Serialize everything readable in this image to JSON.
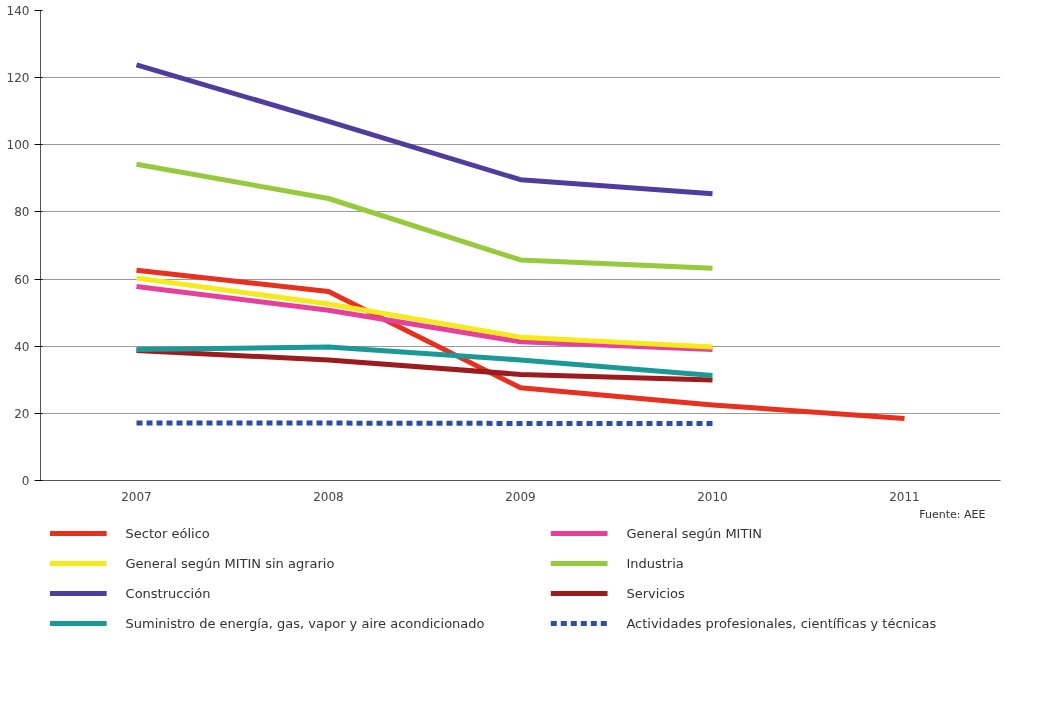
{
  "chart_data": {
    "type": "line",
    "categories": [
      "2007",
      "2008",
      "2009",
      "2010",
      "2011"
    ],
    "ylim": [
      0,
      140
    ],
    "yticks": [
      0,
      20,
      40,
      60,
      80,
      100,
      120,
      140
    ],
    "grid": "y",
    "legend": "bottom",
    "line_style": "solid",
    "annotations": [
      "Fuente: AEE"
    ],
    "series": [
      {
        "name": "Sector eólico",
        "color": "#e8301f",
        "values": [
          62.6,
          56.3,
          27.6,
          22.5,
          18.5
        ]
      },
      {
        "name": "General según MITIN",
        "color": "#e8409a",
        "values": [
          57.8,
          50.7,
          41.3,
          39.0,
          null
        ]
      },
      {
        "name": "General según MITIN sin agrario",
        "color": "#f5ea1c",
        "values": [
          60.3,
          52.6,
          42.7,
          39.8,
          null
        ]
      },
      {
        "name": "Industria",
        "color": "#97c93c",
        "values": [
          94.2,
          84.0,
          65.7,
          63.2,
          null
        ]
      },
      {
        "name": "Construcción",
        "color": "#4f3d9e",
        "values": [
          123.8,
          107.0,
          89.6,
          85.4,
          null
        ]
      },
      {
        "name": "Servicios",
        "color": "#9b1b1e",
        "values": [
          38.7,
          35.9,
          31.6,
          29.9,
          null
        ]
      },
      {
        "name": "Suministro de energía, gas, vapor y aire acondicionado",
        "color": "#1a9a96",
        "values": [
          39.0,
          39.8,
          35.9,
          31.3,
          null
        ]
      },
      {
        "name": "Actividades profesionales, científicas y técnicas",
        "color": "#2a4fa0",
        "line_style": "dashed",
        "values": [
          17.1,
          17.1,
          17.0,
          17.0,
          null
        ]
      }
    ]
  }
}
